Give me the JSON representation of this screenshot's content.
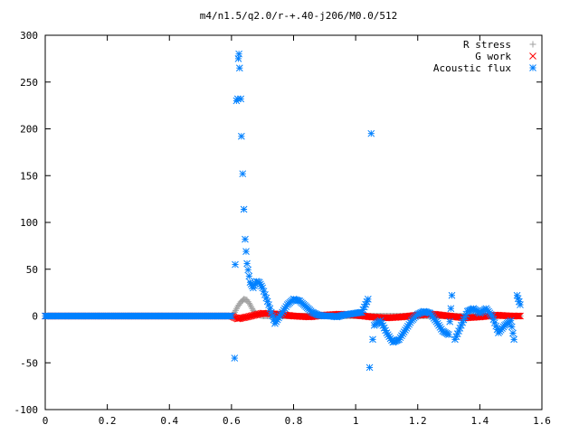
{
  "chart_data": {
    "type": "scatter",
    "title": "m4/n1.5/q2.0/r-+.40-j206/M0.0/512",
    "xlim": [
      0,
      1.6
    ],
    "ylim": [
      -100,
      300
    ],
    "x_ticks": [
      0,
      0.2,
      0.4,
      0.6,
      0.8,
      1,
      1.2,
      1.4,
      1.6
    ],
    "y_ticks": [
      -100,
      -50,
      0,
      50,
      100,
      150,
      200,
      250,
      300
    ],
    "x_tick_labels": [
      "0",
      "0.2",
      "0.4",
      "0.6",
      "0.8",
      "1",
      "1.2",
      "1.4",
      "1.6"
    ],
    "y_tick_labels": [
      "-100",
      "-50",
      "0",
      "50",
      "100",
      "150",
      "200",
      "250",
      "300"
    ],
    "grid": false,
    "legend_position": "top-right",
    "series": [
      {
        "name": "R stress",
        "marker": "+",
        "color": "#a0a0a0",
        "x": [
          0.0,
          0.6,
          0.61,
          0.62,
          0.63,
          0.64,
          0.65,
          0.66,
          0.67,
          0.68,
          0.7,
          0.75,
          0.8,
          0.9,
          1.0,
          1.1,
          1.2,
          1.3,
          1.4,
          1.5,
          1.53
        ],
        "y": [
          0,
          0,
          4,
          10,
          15,
          18,
          17,
          12,
          6,
          2,
          0,
          0,
          0,
          0,
          0,
          0,
          0,
          0,
          0,
          0,
          0
        ]
      },
      {
        "name": "G work",
        "marker": "x",
        "color": "#ff0000",
        "x": [
          0.0,
          0.6,
          0.62,
          0.65,
          0.7,
          0.75,
          0.8,
          0.85,
          0.9,
          0.95,
          1.0,
          1.05,
          1.1,
          1.15,
          1.2,
          1.25,
          1.3,
          1.35,
          1.4,
          1.45,
          1.5,
          1.53
        ],
        "y": [
          0,
          0,
          -3,
          -1,
          3,
          2,
          0,
          -1,
          1,
          2,
          1,
          -1,
          -2,
          -1,
          1,
          2,
          0,
          -2,
          -1,
          1,
          0,
          0
        ]
      },
      {
        "name": "Acoustic flux",
        "marker": "*",
        "color": "#0080ff",
        "x": [
          0.0,
          0.6,
          0.61,
          0.612,
          0.616,
          0.62,
          0.622,
          0.624,
          0.626,
          0.63,
          0.632,
          0.636,
          0.64,
          0.644,
          0.65,
          0.66,
          0.67,
          0.68,
          0.69,
          0.7,
          0.72,
          0.74,
          0.76,
          0.78,
          0.8,
          0.82,
          0.84,
          0.86,
          0.88,
          0.9,
          0.92,
          0.94,
          0.96,
          0.98,
          1.0,
          1.02,
          1.04,
          1.045,
          1.05,
          1.055,
          1.06,
          1.08,
          1.1,
          1.12,
          1.14,
          1.16,
          1.18,
          1.2,
          1.22,
          1.24,
          1.26,
          1.28,
          1.3,
          1.31,
          1.32,
          1.34,
          1.36,
          1.38,
          1.4,
          1.42,
          1.44,
          1.46,
          1.48,
          1.5,
          1.51,
          1.52,
          1.53
        ],
        "y": [
          0,
          0,
          -45,
          55,
          230,
          232,
          275,
          280,
          265,
          232,
          192,
          152,
          114,
          82,
          56,
          36,
          30,
          37,
          36,
          30,
          12,
          -8,
          2,
          12,
          18,
          16,
          10,
          4,
          1,
          0,
          0,
          -1,
          1,
          2,
          3,
          4,
          18,
          -55,
          195,
          -25,
          -10,
          -5,
          -18,
          -28,
          -25,
          -15,
          -5,
          2,
          5,
          3,
          -6,
          -16,
          -20,
          22,
          -25,
          -10,
          5,
          8,
          3,
          8,
          0,
          -18,
          -10,
          -5,
          -25,
          22,
          12
        ]
      }
    ]
  }
}
